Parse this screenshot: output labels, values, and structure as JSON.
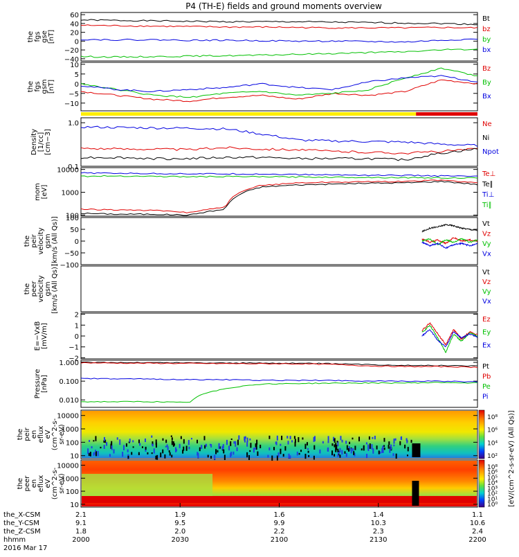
{
  "title": "P4 (TH-E) fields and ground moments overview",
  "colors": {
    "black": "#000000",
    "red": "#e00000",
    "green": "#00c000",
    "blue": "#0000e0",
    "yellow": "#ffee00"
  },
  "chart_data": [
    {
      "type": "line",
      "ylabel": [
        "the",
        "fgs",
        "gse",
        "[nT]"
      ],
      "ylim": [
        -45,
        65
      ],
      "yticks": [
        {
          "v": 60,
          "label": "60"
        },
        {
          "v": 40,
          "label": "40"
        },
        {
          "v": 20,
          "label": "20"
        },
        {
          "v": 0,
          "label": "0"
        },
        {
          "v": -20,
          "label": "−20"
        },
        {
          "v": -40,
          "label": "−40"
        }
      ],
      "series": [
        {
          "name": "Bt",
          "color": "black",
          "values": [
            48,
            47,
            46,
            45,
            44,
            44,
            44,
            43,
            42,
            41,
            40,
            38
          ]
        },
        {
          "name": "bz",
          "color": "red",
          "values": [
            36,
            35,
            34,
            33,
            32,
            32,
            31,
            30,
            30,
            30,
            31,
            30
          ]
        },
        {
          "name": "by",
          "color": "green",
          "values": [
            -35,
            -36,
            -35,
            -34,
            -33,
            -32,
            -30,
            -28,
            -26,
            -24,
            -20,
            -18
          ]
        },
        {
          "name": "bx",
          "color": "blue",
          "values": [
            4,
            3,
            3,
            2,
            2,
            1,
            0,
            0,
            -1,
            -2,
            2,
            5
          ]
        }
      ]
    },
    {
      "type": "line",
      "ylabel": [
        "the",
        "fgs",
        "gsm",
        "[nT]"
      ],
      "ylim": [
        -14,
        11
      ],
      "yticks": [
        {
          "v": 10,
          "label": "10"
        },
        {
          "v": 5,
          "label": "5"
        },
        {
          "v": 0,
          "label": "0"
        },
        {
          "v": -5,
          "label": "−5"
        },
        {
          "v": -10,
          "label": "−10"
        }
      ],
      "series": [
        {
          "name": "Bz",
          "color": "red",
          "values": [
            -4,
            -6,
            -8,
            -9,
            -7,
            -6,
            -8,
            -5,
            -6,
            -4,
            2,
            0
          ]
        },
        {
          "name": "By",
          "color": "green",
          "values": [
            0,
            -3,
            -6,
            -7,
            -5,
            -4,
            -6,
            -5,
            -3,
            3,
            8,
            4
          ]
        },
        {
          "name": "Bx",
          "color": "blue",
          "values": [
            -1,
            -3,
            -4,
            -3,
            -2,
            0,
            -2,
            -3,
            1,
            3,
            4,
            1
          ]
        }
      ]
    },
    {
      "type": "line",
      "ylabel": [
        "Density",
        "[1/cc]",
        "[cm−3]"
      ],
      "yscale": "log",
      "ylim": [
        0.1,
        1.3
      ],
      "yticks": [
        {
          "v": 1.0,
          "label": "1.0"
        },
        {
          "v": 0.1,
          "label": "0.1"
        }
      ],
      "series": [
        {
          "name": "Ne",
          "color": "red",
          "values": [
            0.26,
            0.25,
            0.25,
            0.24,
            0.27,
            0.25,
            0.24,
            0.22,
            0.21,
            0.2,
            0.22,
            0.25
          ]
        },
        {
          "name": "Ni",
          "color": "black",
          "values": [
            0.16,
            0.16,
            0.15,
            0.15,
            0.16,
            0.16,
            0.15,
            0.15,
            0.15,
            0.14,
            0.2,
            0.25
          ]
        },
        {
          "name": "Npot",
          "color": "blue",
          "values": [
            0.8,
            0.78,
            0.76,
            0.75,
            0.72,
            0.55,
            0.4,
            0.38,
            0.37,
            0.36,
            0.32,
            0.3
          ]
        }
      ]
    },
    {
      "type": "line",
      "ylabel": [
        "mom",
        "[eV]"
      ],
      "yscale": "log",
      "ylim": [
        90,
        12000
      ],
      "yticks": [
        {
          "v": 10000,
          "label": "10000"
        },
        {
          "v": 1000,
          "label": "1000"
        },
        {
          "v": 100,
          "label": "100"
        }
      ],
      "series": [
        {
          "name": "Te⊥",
          "color": "red",
          "values": [
            180,
            170,
            160,
            130,
            220,
            2000,
            2600,
            2800,
            2900,
            3000,
            3400,
            2600
          ]
        },
        {
          "name": "Te∥",
          "color": "black",
          "values": [
            120,
            110,
            110,
            100,
            180,
            1700,
            2100,
            2300,
            2500,
            2600,
            3000,
            2200
          ]
        },
        {
          "name": "Ti⊥",
          "color": "blue",
          "values": [
            7000,
            6800,
            6600,
            6500,
            6400,
            6300,
            6000,
            5800,
            5600,
            5500,
            5200,
            5000
          ]
        },
        {
          "name": "Ti∥",
          "color": "green",
          "values": [
            5000,
            5200,
            5000,
            4800,
            4900,
            4800,
            4700,
            4600,
            4500,
            4400,
            4300,
            4200
          ]
        }
      ]
    },
    {
      "type": "line",
      "ylabel": [
        "the",
        "peir",
        "velocity",
        "gsm",
        "[km/s (All Qs)]"
      ],
      "ylim": [
        -100,
        100
      ],
      "yticks": [
        {
          "v": 100,
          "label": "100"
        },
        {
          "v": 50,
          "label": "50"
        },
        {
          "v": 0,
          "label": "0"
        },
        {
          "v": -50,
          "label": "−50"
        },
        {
          "v": -100,
          "label": "−100"
        }
      ],
      "xrange": [
        0.86,
        1.0
      ],
      "series": [
        {
          "name": "Vt",
          "color": "black",
          "values": [
            40,
            55,
            60,
            70,
            65,
            55,
            50,
            45
          ]
        },
        {
          "name": "Vz",
          "color": "red",
          "values": [
            10,
            -5,
            5,
            -10,
            15,
            0,
            5,
            0
          ]
        },
        {
          "name": "Vy",
          "color": "green",
          "values": [
            0,
            10,
            -15,
            5,
            -5,
            10,
            -5,
            5
          ]
        },
        {
          "name": "Vx",
          "color": "blue",
          "values": [
            -5,
            -20,
            -10,
            -30,
            -15,
            -10,
            -20,
            -10
          ]
        }
      ]
    },
    {
      "type": "line",
      "ylabel": [
        "the",
        "peer",
        "velocity",
        "gsm",
        "[km/s (All Qs)]"
      ],
      "series": [
        {
          "name": "Vt",
          "color": "black",
          "values": []
        },
        {
          "name": "Vz",
          "color": "red",
          "values": []
        },
        {
          "name": "Vy",
          "color": "green",
          "values": []
        },
        {
          "name": "Vx",
          "color": "blue",
          "values": []
        }
      ]
    },
    {
      "type": "line",
      "ylabel": [
        "E=−VxB",
        "[mV/m]"
      ],
      "ylim": [
        -2.1,
        2.1
      ],
      "yticks": [
        {
          "v": 2,
          "label": "2"
        },
        {
          "v": 1,
          "label": "1"
        },
        {
          "v": 0,
          "label": "0"
        },
        {
          "v": -1,
          "label": "−1"
        },
        {
          "v": -2,
          "label": "−2"
        }
      ],
      "xrange": [
        0.86,
        1.0
      ],
      "series": [
        {
          "name": "Ez",
          "color": "red",
          "values": [
            0.5,
            1.2,
            0.2,
            -0.8,
            0.6,
            -0.3,
            0.4,
            0.1
          ]
        },
        {
          "name": "Ey",
          "color": "green",
          "values": [
            0.3,
            1.0,
            -0.2,
            -1.5,
            0.2,
            -0.5,
            0.3,
            0.0
          ]
        },
        {
          "name": "Ex",
          "color": "blue",
          "values": [
            0.0,
            0.6,
            -0.4,
            -1.0,
            0.4,
            -0.2,
            0.2,
            -0.1
          ]
        }
      ]
    },
    {
      "type": "line",
      "ylabel": [
        "Pressure",
        "[nPa]"
      ],
      "yscale": "log",
      "ylim": [
        0.004,
        1.3
      ],
      "yticks": [
        {
          "v": 1,
          "label": "1.000"
        },
        {
          "v": 0.1,
          "label": "0.100"
        },
        {
          "v": 0.01,
          "label": "0.010"
        }
      ],
      "series": [
        {
          "name": "Pt",
          "color": "black",
          "values": [
            1.0,
            0.98,
            0.97,
            0.95,
            0.93,
            0.92,
            0.9,
            0.85,
            0.75,
            0.7,
            0.68,
            0.65
          ]
        },
        {
          "name": "Pb",
          "color": "red",
          "values": [
            0.95,
            0.92,
            0.9,
            0.88,
            0.86,
            0.85,
            0.84,
            0.78,
            0.65,
            0.6,
            0.6,
            0.55
          ]
        },
        {
          "name": "Pe",
          "color": "green",
          "values": [
            0.008,
            0.008,
            0.008,
            0.007,
            0.04,
            0.07,
            0.075,
            0.078,
            0.08,
            0.08,
            0.085,
            0.08
          ]
        },
        {
          "name": "Pi",
          "color": "blue",
          "values": [
            0.14,
            0.13,
            0.13,
            0.12,
            0.12,
            0.11,
            0.11,
            0.11,
            0.1,
            0.1,
            0.1,
            0.09
          ]
        }
      ]
    },
    {
      "type": "heatmap",
      "ylabel": [
        "the",
        "peir",
        "en",
        "eflux",
        "eV",
        "(cm^2-s-",
        "sr-eV)"
      ],
      "yscale": "log",
      "ylim": [
        6,
        25000
      ],
      "yticks": [
        {
          "v": 10000,
          "label": "10000"
        },
        {
          "v": 1000,
          "label": "1000"
        },
        {
          "v": 100,
          "label": "100"
        },
        {
          "v": 10,
          "label": "10"
        }
      ],
      "colorbar": {
        "ticks": [
          "10⁸",
          "10⁶",
          "10⁴",
          "10²"
        ]
      }
    },
    {
      "type": "heatmap",
      "ylabel": [
        "the",
        "peer",
        "en",
        "eflux",
        "eV",
        "(cm^2-s-",
        "sr-eV)"
      ],
      "yscale": "log",
      "ylim": [
        6,
        25000
      ],
      "yticks": [
        {
          "v": 10000,
          "label": "10000"
        },
        {
          "v": 1000,
          "label": "1000"
        },
        {
          "v": 100,
          "label": "100"
        },
        {
          "v": 10,
          "label": "10"
        }
      ],
      "colorbar": {
        "ticks": [
          "10⁸",
          "10⁶",
          "10⁵",
          "10⁴",
          "10³",
          "10²",
          "10¹",
          "10⁰"
        ]
      }
    }
  ],
  "colorbar_label": "[eV/(cm^2-s-sr-eV) (All Qs)]",
  "x_axis": {
    "rows": [
      {
        "label": "the_X-CSM",
        "values": [
          "2.1",
          "1.9",
          "1.6",
          "1.4",
          "1.1"
        ]
      },
      {
        "label": "the_Y-CSM",
        "values": [
          "9.1",
          "9.5",
          "9.9",
          "10.3",
          "10.6"
        ]
      },
      {
        "label": "the_Z-CSM",
        "values": [
          "1.8",
          "2.0",
          "2.2",
          "2.3",
          "2.4"
        ]
      },
      {
        "label": "hhmm",
        "values": [
          "2000",
          "2030",
          "2100",
          "2130",
          "2200"
        ]
      }
    ],
    "date": "2016 Mar 17"
  }
}
